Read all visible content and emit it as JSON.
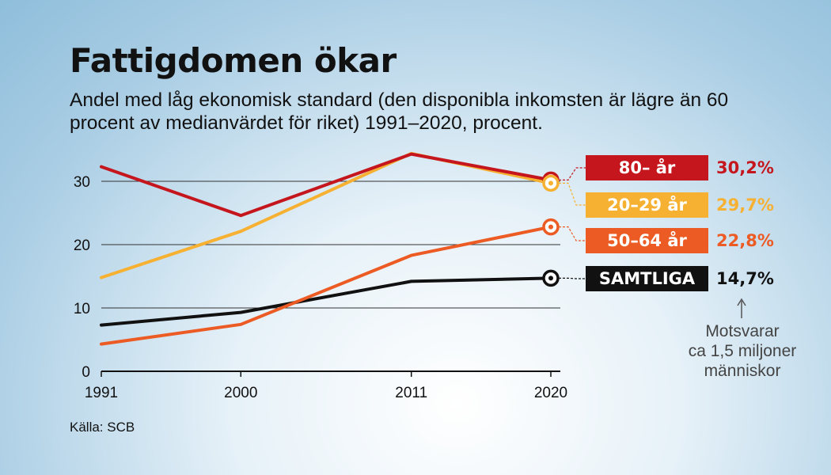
{
  "title": "Fattigdomen ökar",
  "subtitle": "Andel med låg ekonomisk standard (den disponibla inkomsten är lägre än 60 procent av medianvärdet för riket) 1991–2020, procent.",
  "source": "Källa: SCB",
  "note": [
    "Motsvarar",
    "ca 1,5 miljoner",
    "människor"
  ],
  "colors": {
    "age_80": "#c4161c",
    "age_20_29": "#f6b132",
    "age_50_64": "#ec5b24",
    "all": "#111111"
  },
  "chart_data": {
    "type": "line",
    "title": "Fattigdomen ökar",
    "x": [
      1991,
      2000,
      2011,
      2020
    ],
    "xticks": [
      "1991",
      "2000",
      "2011",
      "2020"
    ],
    "yticks": [
      "0",
      "10",
      "20",
      "30"
    ],
    "ylim": [
      0,
      35
    ],
    "grid": true,
    "series": [
      {
        "name": "80– år",
        "values": [
          32.3,
          24.6,
          34.3,
          30.2
        ],
        "end_label": "30,2%",
        "color": "#c4161c"
      },
      {
        "name": "20–29 år",
        "values": [
          14.8,
          22.1,
          34.4,
          29.7
        ],
        "end_label": "29,7%",
        "color": "#f6b132"
      },
      {
        "name": "50–64 år",
        "values": [
          4.3,
          7.4,
          18.3,
          22.8
        ],
        "end_label": "22,8%",
        "color": "#ec5b24"
      },
      {
        "name": "SAMTLIGA",
        "values": [
          7.3,
          9.3,
          14.2,
          14.7
        ],
        "end_label": "14,7%",
        "color": "#111111"
      }
    ]
  }
}
